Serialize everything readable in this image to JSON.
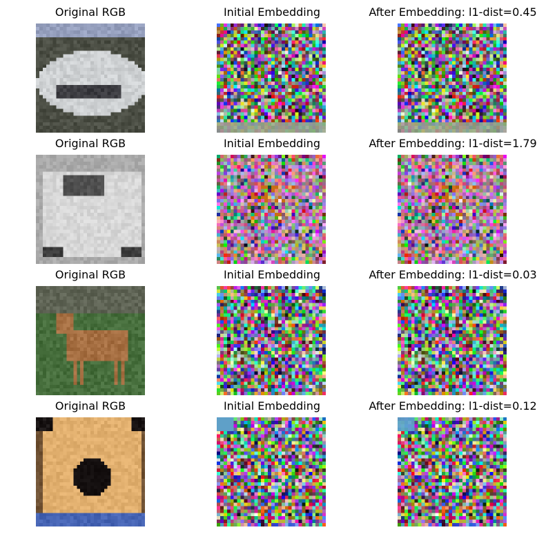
{
  "figure": {
    "rows": [
      {
        "panels": [
          {
            "title": "Original RGB",
            "image": "car-white-photo"
          },
          {
            "title": "Initial Embedding",
            "image": "noise-embedding"
          },
          {
            "title": "After Embedding: l1-dist=0.45",
            "image": "noise-embedding"
          }
        ]
      },
      {
        "panels": [
          {
            "title": "Original RGB",
            "image": "car-grayscale-photo"
          },
          {
            "title": "Initial Embedding",
            "image": "noise-embedding"
          },
          {
            "title": "After Embedding: l1-dist=1.79",
            "image": "noise-embedding"
          }
        ]
      },
      {
        "panels": [
          {
            "title": "Original RGB",
            "image": "deer-photo"
          },
          {
            "title": "Initial Embedding",
            "image": "noise-embedding"
          },
          {
            "title": "After Embedding: l1-dist=0.03",
            "image": "noise-embedding"
          }
        ]
      },
      {
        "panels": [
          {
            "title": "Original RGB",
            "image": "dog-face-photo"
          },
          {
            "title": "Initial Embedding",
            "image": "noise-embedding"
          },
          {
            "title": "After Embedding: l1-dist=0.12",
            "image": "noise-embedding"
          }
        ]
      }
    ]
  }
}
